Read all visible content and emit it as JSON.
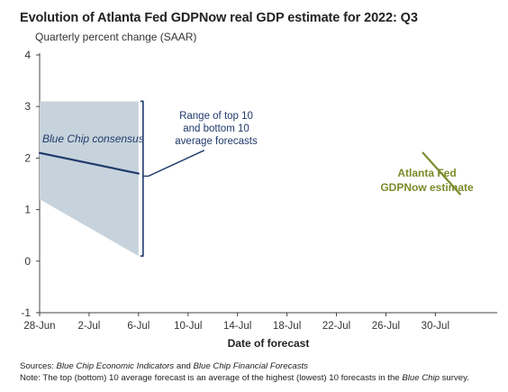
{
  "chart_data": {
    "type": "line",
    "title": "Evolution of Atlanta Fed GDPNow real GDP estimate for 2022: Q3",
    "subtitle": "Quarterly percent change (SAAR)",
    "xlabel": "Date of forecast",
    "ylabel": "",
    "ylim": [
      -1,
      4
    ],
    "yticks": [
      -1,
      0,
      1,
      2,
      3,
      4
    ],
    "xticks": [
      "28-Jun",
      "2-Jul",
      "6-Jul",
      "10-Jul",
      "14-Jul",
      "18-Jul",
      "22-Jul",
      "26-Jul",
      "30-Jul"
    ],
    "xrange_days": [
      0,
      37
    ],
    "grid": false,
    "series": [
      {
        "name": "Blue Chip consensus",
        "color": "#1f3a6b",
        "points": [
          {
            "x": "28-Jun",
            "y": 2.1
          },
          {
            "x": "6-Jul",
            "y": 1.7
          }
        ]
      },
      {
        "name": "Atlanta Fed GDPNow estimate",
        "color": "#7a8c2a",
        "points": [
          {
            "x": "29-Jul",
            "y": 2.1
          },
          {
            "x": "1-Aug",
            "y": 1.3
          }
        ]
      }
    ],
    "range_band": {
      "name": "Range of top 10 and bottom 10 average forecasts",
      "color": "#c7d3dc",
      "bracket_color": "#1f3a6b",
      "upper": [
        {
          "x": "28-Jun",
          "y": 3.1
        },
        {
          "x": "6-Jul",
          "y": 3.1
        }
      ],
      "lower": [
        {
          "x": "28-Jun",
          "y": 1.2
        },
        {
          "x": "6-Jul",
          "y": 0.1
        }
      ]
    },
    "annotations": {
      "blue_chip_label": "Blue Chip consensus",
      "range_label_lines": [
        "Range of top 10",
        "and bottom 10",
        "average forecasts"
      ],
      "gdpnow_label_lines": [
        "Atlanta Fed",
        "GDPNow estimate"
      ]
    }
  },
  "footnotes": {
    "sources_prefix": "Sources: ",
    "sources_italic_1": "Blue Chip Economic Indicators",
    "sources_mid": " and ",
    "sources_italic_2": "Blue Chip Financial Forecasts",
    "note_prefix": "Note: The top (bottom) 10 average forecast is an average of the highest (lowest) 10 forecasts in the ",
    "note_italic": "Blue Chip",
    "note_suffix": " survey."
  }
}
